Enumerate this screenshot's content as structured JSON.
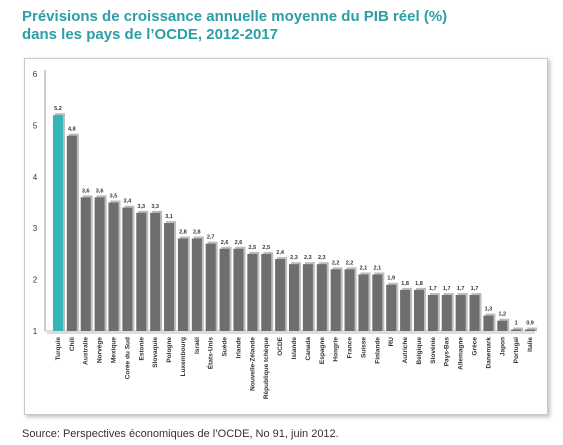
{
  "title": {
    "line1": "Prévisions de croissance annuelle moyenne du PIB réel (%)",
    "line2": "dans les pays de l’OCDE, 2012-2017"
  },
  "source": "Source: Perspectives économiques de l’OCDE, No 91, juin 2012.",
  "chart_data": {
    "type": "bar",
    "categories": [
      "Turquie",
      "Chili",
      "Australie",
      "Norvège",
      "Mexique",
      "Corée du Sud",
      "Estonie",
      "Slovaquie",
      "Pologne",
      "Luxembourg",
      "Israël",
      "États-Unis",
      "Suède",
      "Irlande",
      "Nouvelle-Zélande",
      "République tchèque",
      "OCDE",
      "Islande",
      "Canada",
      "Espagne",
      "Hongrie",
      "France",
      "Suisse",
      "Finlande",
      "RU",
      "Autriche",
      "Belgique",
      "Slovénie",
      "Pays-Bas",
      "Allemagne",
      "Grèce",
      "Danemark",
      "Japon",
      "Portugal",
      "Italie"
    ],
    "values": [
      5.2,
      4.8,
      3.6,
      3.6,
      3.5,
      3.4,
      3.3,
      3.3,
      3.1,
      2.8,
      2.8,
      2.7,
      2.6,
      2.6,
      2.5,
      2.5,
      2.4,
      2.3,
      2.3,
      2.3,
      2.2,
      2.2,
      2.1,
      2.1,
      1.9,
      1.8,
      1.8,
      1.7,
      1.7,
      1.7,
      1.7,
      1.3,
      1.2,
      1,
      0.9
    ],
    "value_labels": [
      "5,2",
      "4,8",
      "3,6",
      "3,6",
      "3,5",
      "3,4",
      "3,3",
      "3,3",
      "3,1",
      "2,8",
      "2,8",
      "2,7",
      "2,6",
      "2,6",
      "2,5",
      "2,5",
      "2,4",
      "2,3",
      "2,3",
      "2,3",
      "2,2",
      "2,2",
      "2,1",
      "2,1",
      "1,9",
      "1,8",
      "1,8",
      "1,7",
      "1,7",
      "1,7",
      "1,7",
      "1,3",
      "1,2",
      "1",
      "0,9"
    ],
    "yticks": [
      1,
      2,
      3,
      4,
      5,
      6
    ],
    "ylim": [
      1,
      6
    ],
    "highlight_index": 0,
    "colors": {
      "highlight": "#33b5ba",
      "bar": "#6e6e6e",
      "axis": "#999999"
    },
    "grid": false,
    "legend": "none"
  }
}
